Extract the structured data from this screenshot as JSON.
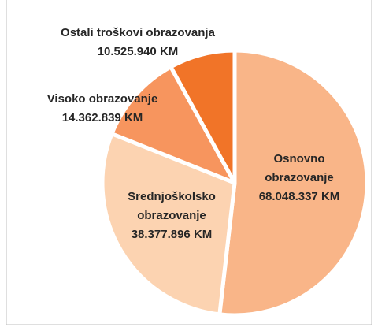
{
  "chart_data": {
    "type": "pie",
    "categories": [
      "Osnovno obrazovanje",
      "Srednjoškolsko obrazovanje",
      "Visoko obrazovanje",
      "Ostali troškovi obrazovanja"
    ],
    "values": [
      68048337,
      38377896,
      14362839,
      10525940
    ],
    "value_labels": [
      "68.048.337 KM",
      "38.377.896 KM",
      "14.362.839 KM",
      "10.525.940 KM"
    ],
    "colors": [
      "#f9b588",
      "#fcd3b1",
      "#f7955e",
      "#f17428"
    ]
  }
}
